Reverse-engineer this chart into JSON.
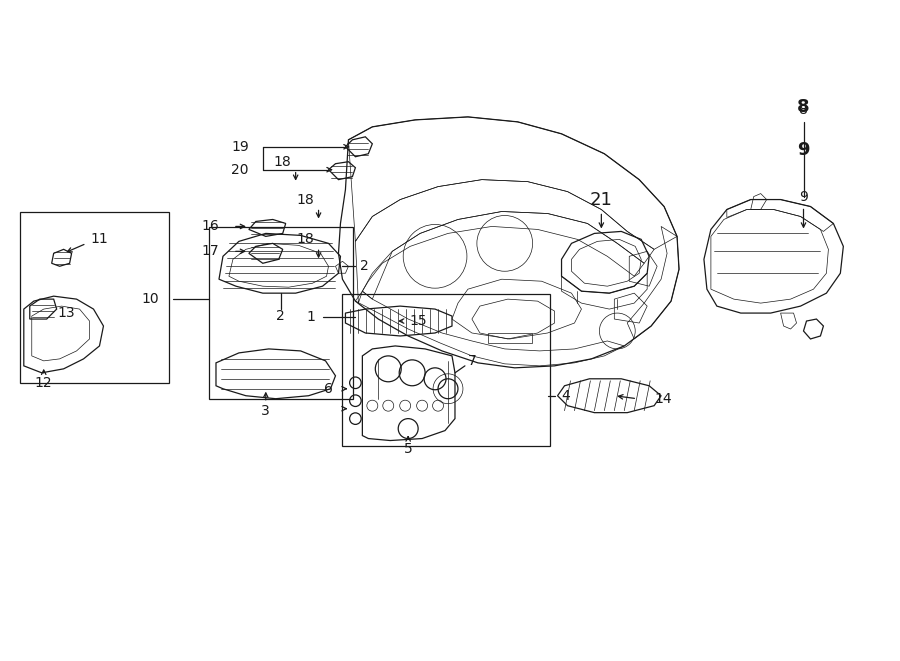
{
  "bg_color": "#ffffff",
  "line_color": "#1a1a1a",
  "fig_width": 9.0,
  "fig_height": 6.61,
  "dpi": 100,
  "lw_main": 0.9,
  "lw_thin": 0.5,
  "label_fontsize": 10,
  "label_fontsize_lg": 13
}
